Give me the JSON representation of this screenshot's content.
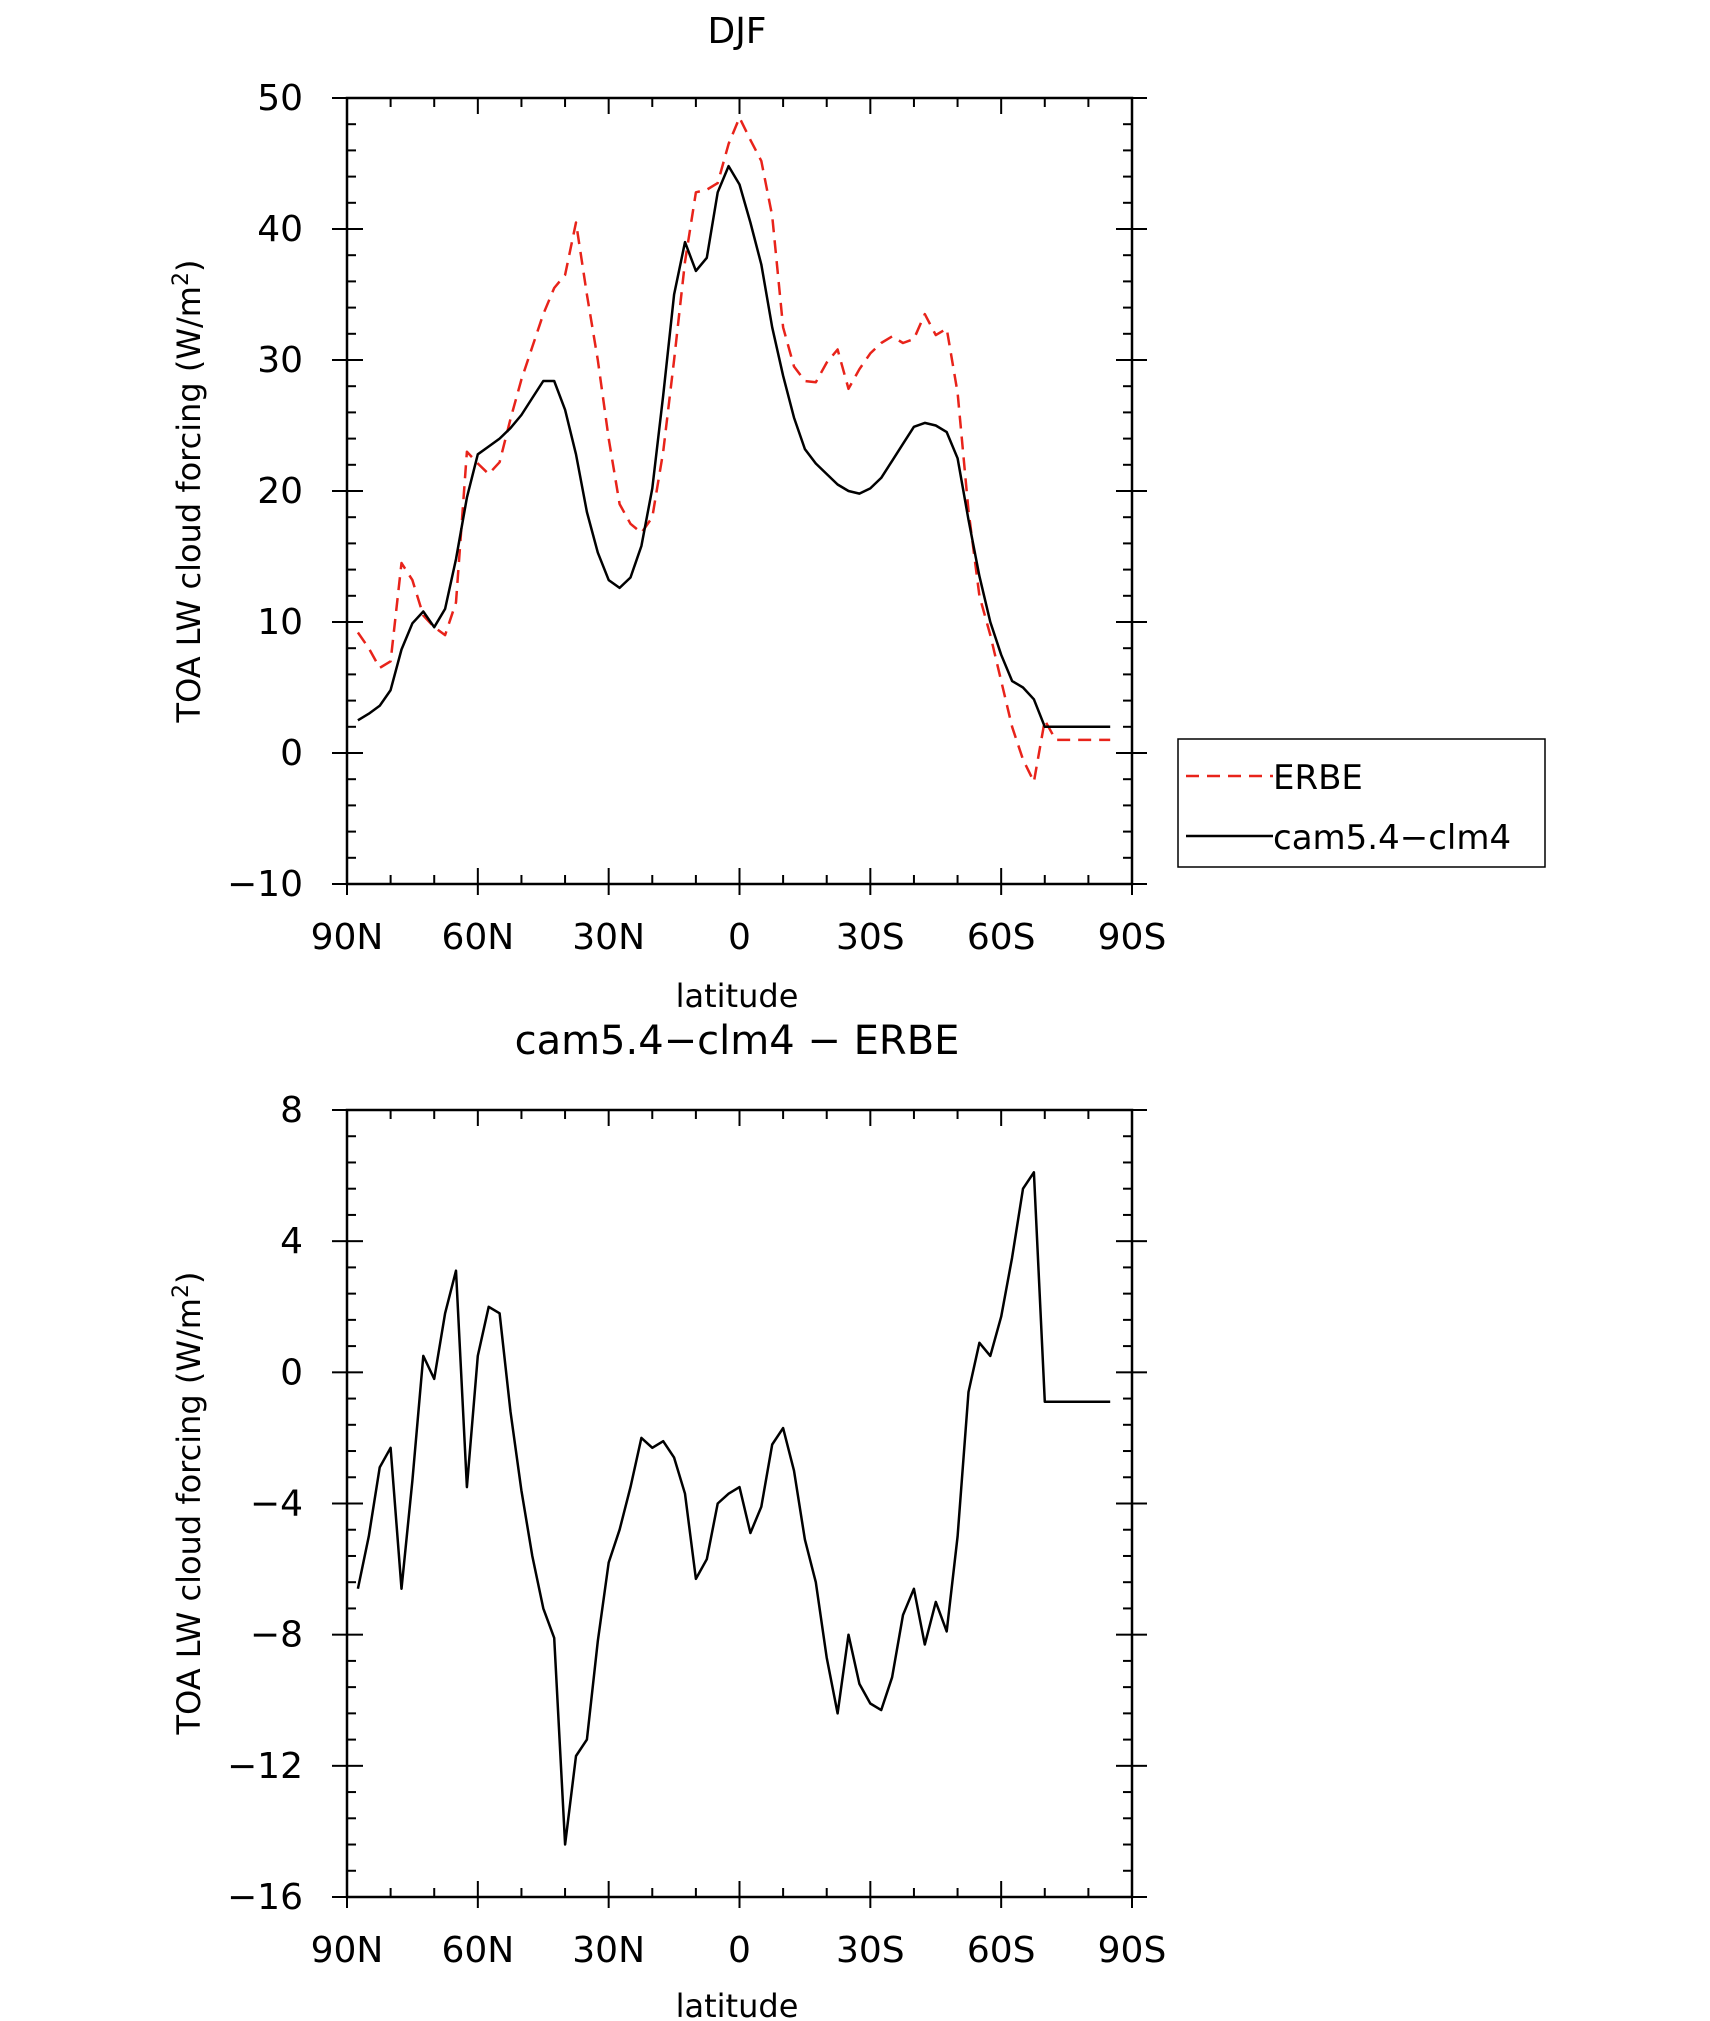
{
  "chart_data": [
    {
      "type": "line",
      "title": "DJF",
      "xlabel": "latitude",
      "ylabel_main": "TOA LW cloud forcing (W/m",
      "ylabel_sup": "2",
      "ylabel_close": ")",
      "xlim": [
        90,
        -90
      ],
      "ylim": [
        -10,
        50
      ],
      "x_ticks": [
        90,
        60,
        30,
        0,
        -30,
        -60,
        -90
      ],
      "x_tick_labels": [
        "90N",
        "60N",
        "30N",
        "0",
        "30S",
        "60S",
        "90S"
      ],
      "y_ticks": [
        -10,
        0,
        10,
        20,
        30,
        40,
        50
      ],
      "y_tick_labels": [
        "−10",
        "0",
        "10",
        "20",
        "30",
        "40",
        "50"
      ],
      "legend_position": "right",
      "x": [
        87.5,
        85,
        82.5,
        80,
        77.5,
        75,
        72.5,
        70,
        67.5,
        65,
        62.5,
        60,
        57.5,
        55,
        52.5,
        50,
        47.5,
        45,
        42.5,
        40,
        37.5,
        35,
        32.5,
        30,
        27.5,
        25,
        22.5,
        20,
        17.5,
        15,
        12.5,
        10,
        7.5,
        5,
        2.5,
        0,
        -2.5,
        -5,
        -7.5,
        -10,
        -12.5,
        -15,
        -17.5,
        -20,
        -22.5,
        -25,
        -27.5,
        -30,
        -32.5,
        -35,
        -37.5,
        -40,
        -42.5,
        -45,
        -47.5,
        -50,
        -52.5,
        -55,
        -57.5,
        -60,
        -62.5,
        -65,
        -67.5,
        -70,
        -72.5,
        -75,
        -77.5,
        -80,
        -82.5,
        -85,
        -87.5
      ],
      "series": [
        {
          "name": "ERBE",
          "color": "#e8231a",
          "dash": true,
          "values": [
            9.2,
            8.0,
            6.5,
            7.0,
            14.5,
            13.2,
            10.5,
            9.6,
            9.0,
            11.5,
            23.0,
            22.1,
            21.3,
            22.2,
            25.5,
            28.5,
            31.0,
            33.5,
            35.5,
            36.5,
            40.5,
            35.0,
            30.0,
            24.0,
            19.0,
            17.5,
            16.8,
            18.0,
            23.0,
            30.0,
            37.5,
            42.8,
            43.0,
            43.5,
            46.5,
            48.5,
            46.8,
            45.2,
            41.0,
            32.5,
            29.5,
            28.4,
            28.3,
            29.8,
            30.8,
            27.8,
            29.3,
            30.5,
            31.3,
            31.8,
            31.3,
            31.6,
            33.5,
            31.9,
            32.4,
            27.5,
            18.5,
            12.0,
            9.0,
            5.5,
            2.0,
            -0.5,
            -2.2,
            2.5,
            1.0,
            1.0,
            1.0,
            1.0,
            1.0,
            1.0,
            1.0
          ]
        },
        {
          "name": "cam5.4−clm4",
          "color": "#000000",
          "dash": false,
          "values": [
            2.5,
            3.0,
            3.6,
            4.8,
            7.9,
            9.9,
            10.8,
            9.6,
            11.0,
            14.8,
            19.5,
            22.8,
            23.4,
            24.0,
            24.8,
            25.8,
            27.1,
            28.4,
            28.4,
            26.2,
            22.8,
            18.4,
            15.3,
            13.2,
            12.6,
            13.4,
            15.8,
            20.2,
            27.3,
            35.0,
            39.0,
            36.8,
            37.8,
            42.8,
            44.8,
            43.4,
            40.5,
            37.3,
            32.5,
            28.8,
            25.6,
            23.2,
            22.1,
            21.3,
            20.5,
            20.0,
            19.8,
            20.2,
            21.0,
            22.3,
            23.6,
            24.9,
            25.2,
            25.0,
            24.5,
            22.5,
            17.8,
            13.5,
            10.0,
            7.5,
            5.5,
            5.0,
            4.1,
            2.0,
            2.0,
            2.0,
            2.0,
            2.0,
            2.0,
            2.0,
            2.0
          ]
        }
      ]
    },
    {
      "type": "line",
      "title": "cam5.4−clm4 − ERBE",
      "xlabel": "latitude",
      "ylabel_main": "TOA LW cloud forcing (W/m",
      "ylabel_sup": "2",
      "ylabel_close": ")",
      "xlim": [
        90,
        -90
      ],
      "ylim": [
        -16,
        8
      ],
      "x_ticks": [
        90,
        60,
        30,
        0,
        -30,
        -60,
        -90
      ],
      "x_tick_labels": [
        "90N",
        "60N",
        "30N",
        "0",
        "30S",
        "60S",
        "90S"
      ],
      "y_ticks": [
        -16,
        -12,
        -8,
        -4,
        0,
        4,
        8
      ],
      "y_tick_labels": [
        "−16",
        "−12",
        "−8",
        "−4",
        "0",
        "4",
        "8"
      ],
      "x": [
        87.5,
        85,
        82.5,
        80,
        77.5,
        75,
        72.5,
        70,
        67.5,
        65,
        62.5,
        60,
        57.5,
        55,
        52.5,
        50,
        47.5,
        45,
        42.5,
        40,
        37.5,
        35,
        32.5,
        30,
        27.5,
        25,
        22.5,
        20,
        17.5,
        15,
        12.5,
        10,
        7.5,
        5,
        2.5,
        0,
        -2.5,
        -5,
        -7.5,
        -10,
        -12.5,
        -15,
        -17.5,
        -20,
        -22.5,
        -25,
        -27.5,
        -30,
        -32.5,
        -35,
        -37.5,
        -40,
        -42.5,
        -45,
        -47.5,
        -50,
        -52.5,
        -55,
        -57.5,
        -60,
        -62.5,
        -65,
        -67.5,
        -70,
        -72.5,
        -75,
        -77.5,
        -80,
        -82.5,
        -85,
        -87.5
      ],
      "series": [
        {
          "name": "",
          "color": "#000000",
          "dash": false,
          "values": [
            -6.6,
            -5.0,
            -2.9,
            -2.3,
            -6.6,
            -3.3,
            0.5,
            -0.2,
            1.8,
            3.1,
            -3.5,
            0.5,
            2.0,
            1.8,
            -1.2,
            -3.6,
            -5.6,
            -7.2,
            -8.1,
            -14.4,
            -11.7,
            -11.2,
            -8.2,
            -5.8,
            -4.8,
            -3.5,
            -2.0,
            -2.3,
            -2.1,
            -2.6,
            -3.7,
            -6.3,
            -5.7,
            -4.0,
            -3.7,
            -3.5,
            -4.9,
            -4.1,
            -2.2,
            -1.7,
            -3.0,
            -5.1,
            -6.4,
            -8.7,
            -10.4,
            -8.0,
            -9.5,
            -10.1,
            -10.3,
            -9.3,
            -7.4,
            -6.6,
            -8.3,
            -7.0,
            -7.9,
            -5.0,
            -0.6,
            0.9,
            0.5,
            1.7,
            3.5,
            5.6,
            6.1,
            -0.9,
            -0.9,
            -0.9,
            -0.9,
            -0.9,
            -0.9,
            -0.9,
            -0.9
          ]
        }
      ]
    }
  ]
}
